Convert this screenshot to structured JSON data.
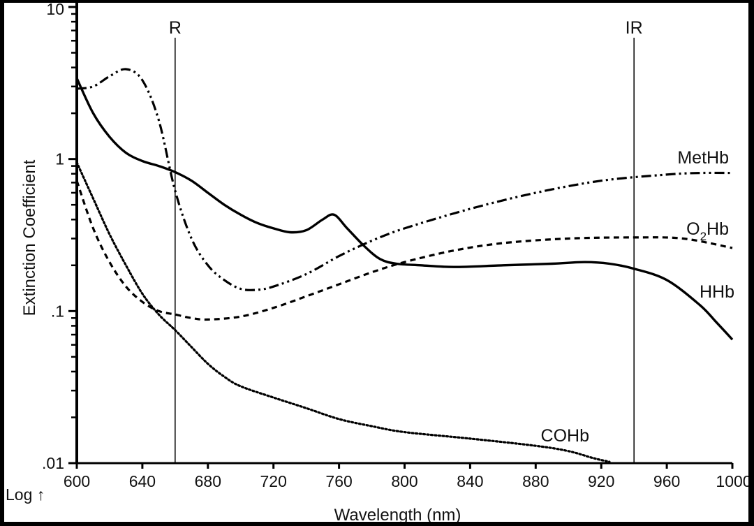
{
  "chart_data": {
    "type": "line",
    "xlabel": "Wavelength (nm)",
    "ylabel": "Extinction Coefficient",
    "y_scale_note": "Log ↑",
    "y_scale": "log",
    "xlim": [
      600,
      1000
    ],
    "ylim": [
      0.01,
      10
    ],
    "x_ticks": [
      600,
      640,
      680,
      720,
      760,
      800,
      840,
      880,
      920,
      960,
      1000
    ],
    "x_tick_labels": [
      "600",
      "640",
      "680",
      "720",
      "760",
      "800",
      "840",
      "880",
      "920",
      "960",
      "1000"
    ],
    "y_ticks": [
      0.01,
      0.1,
      1,
      10
    ],
    "y_tick_labels": [
      ".01",
      ".1",
      "1",
      "10"
    ],
    "grid": false,
    "markers": [
      {
        "label": "R",
        "x": 660
      },
      {
        "label": "IR",
        "x": 940
      }
    ],
    "series": [
      {
        "name": "HHb",
        "label_main": "HHb",
        "label_sub": "",
        "style": "solid",
        "points": [
          [
            600,
            3.4
          ],
          [
            610,
            2.0
          ],
          [
            620,
            1.4
          ],
          [
            630,
            1.1
          ],
          [
            640,
            0.97
          ],
          [
            650,
            0.9
          ],
          [
            660,
            0.82
          ],
          [
            670,
            0.72
          ],
          [
            680,
            0.6
          ],
          [
            690,
            0.5
          ],
          [
            700,
            0.43
          ],
          [
            710,
            0.38
          ],
          [
            720,
            0.35
          ],
          [
            730,
            0.33
          ],
          [
            740,
            0.34
          ],
          [
            750,
            0.4
          ],
          [
            757,
            0.43
          ],
          [
            765,
            0.35
          ],
          [
            775,
            0.27
          ],
          [
            785,
            0.22
          ],
          [
            795,
            0.205
          ],
          [
            810,
            0.2
          ],
          [
            830,
            0.195
          ],
          [
            860,
            0.2
          ],
          [
            890,
            0.205
          ],
          [
            910,
            0.21
          ],
          [
            925,
            0.205
          ],
          [
            940,
            0.19
          ],
          [
            960,
            0.16
          ],
          [
            980,
            0.11
          ],
          [
            990,
            0.085
          ],
          [
            1000,
            0.065
          ]
        ]
      },
      {
        "name": "MetHb",
        "label_main": "MetHb",
        "label_sub": "",
        "style": "dash-dot-dot",
        "points": [
          [
            600,
            2.9
          ],
          [
            610,
            3.0
          ],
          [
            620,
            3.5
          ],
          [
            630,
            3.9
          ],
          [
            640,
            3.3
          ],
          [
            650,
            1.8
          ],
          [
            660,
            0.62
          ],
          [
            670,
            0.3
          ],
          [
            680,
            0.2
          ],
          [
            690,
            0.16
          ],
          [
            700,
            0.14
          ],
          [
            710,
            0.138
          ],
          [
            720,
            0.145
          ],
          [
            740,
            0.175
          ],
          [
            760,
            0.23
          ],
          [
            780,
            0.29
          ],
          [
            800,
            0.35
          ],
          [
            840,
            0.47
          ],
          [
            880,
            0.6
          ],
          [
            920,
            0.72
          ],
          [
            960,
            0.79
          ],
          [
            980,
            0.81
          ],
          [
            1000,
            0.81
          ]
        ]
      },
      {
        "name": "O2Hb",
        "label_main": "O",
        "label_sub": "2",
        "label_end": "Hb",
        "style": "dashed",
        "points": [
          [
            600,
            0.72
          ],
          [
            610,
            0.35
          ],
          [
            620,
            0.21
          ],
          [
            630,
            0.145
          ],
          [
            640,
            0.115
          ],
          [
            650,
            0.1
          ],
          [
            660,
            0.095
          ],
          [
            670,
            0.09
          ],
          [
            680,
            0.088
          ],
          [
            700,
            0.092
          ],
          [
            720,
            0.105
          ],
          [
            740,
            0.125
          ],
          [
            760,
            0.15
          ],
          [
            780,
            0.18
          ],
          [
            800,
            0.21
          ],
          [
            830,
            0.25
          ],
          [
            860,
            0.28
          ],
          [
            900,
            0.3
          ],
          [
            940,
            0.305
          ],
          [
            970,
            0.3
          ],
          [
            1000,
            0.26
          ]
        ]
      },
      {
        "name": "COHb",
        "label_main": "COHb",
        "label_sub": "",
        "style": "dotted",
        "points": [
          [
            600,
            0.95
          ],
          [
            610,
            0.55
          ],
          [
            620,
            0.32
          ],
          [
            630,
            0.2
          ],
          [
            640,
            0.13
          ],
          [
            650,
            0.095
          ],
          [
            660,
            0.075
          ],
          [
            670,
            0.058
          ],
          [
            680,
            0.045
          ],
          [
            690,
            0.037
          ],
          [
            700,
            0.032
          ],
          [
            720,
            0.027
          ],
          [
            740,
            0.023
          ],
          [
            760,
            0.0195
          ],
          [
            780,
            0.0175
          ],
          [
            800,
            0.016
          ],
          [
            840,
            0.0145
          ],
          [
            880,
            0.013
          ],
          [
            900,
            0.012
          ],
          [
            915,
            0.0108
          ],
          [
            925,
            0.0102
          ]
        ]
      }
    ]
  }
}
